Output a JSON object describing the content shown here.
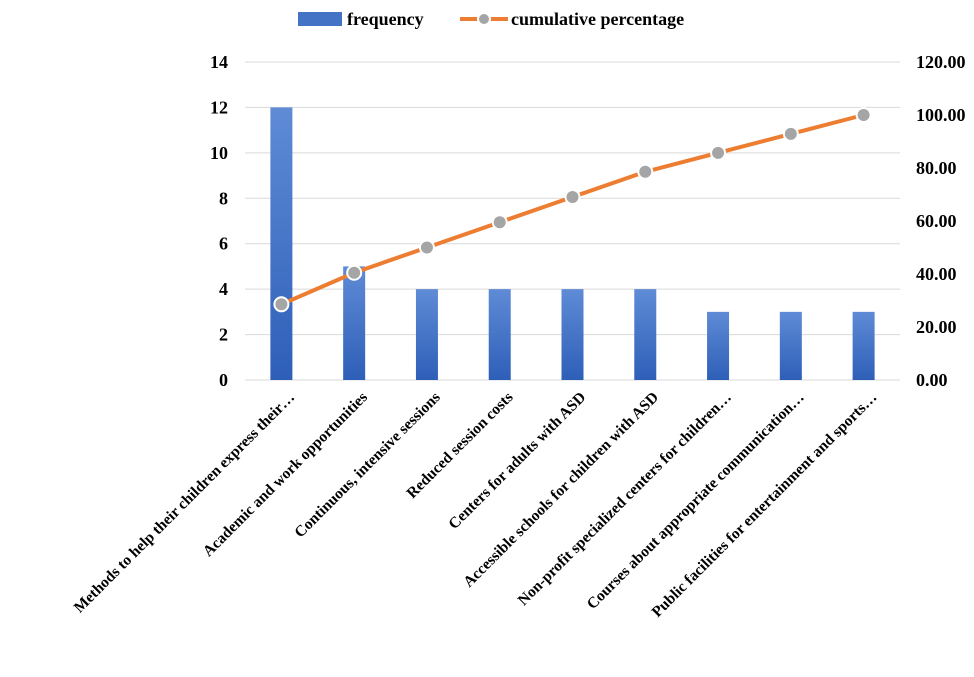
{
  "chart_data": {
    "type": "bar",
    "categories": [
      "Methods to help their children express their…",
      "Academic and work opportunities",
      "Continuous, intensive sessions",
      "Reduced session costs",
      "Centers for adults with ASD",
      "Accessible schools for children with ASD",
      "Non-profit specialized centers for children…",
      "Courses about appropriate communication…",
      "Public facilities for entertainment and sports…"
    ],
    "series": [
      {
        "name": "frequency",
        "type": "bar",
        "axis": "left",
        "values": [
          12,
          5,
          4,
          4,
          4,
          4,
          3,
          3,
          3
        ],
        "color": "#4472C4"
      },
      {
        "name": "cumulative percentage",
        "type": "line",
        "axis": "right",
        "values": [
          28.57,
          40.48,
          50.0,
          59.52,
          69.05,
          78.57,
          85.71,
          92.86,
          100.0
        ],
        "color": "#ED7D31",
        "marker_color": "#A5A5A5"
      }
    ],
    "y_left": {
      "ylim": [
        0,
        14
      ],
      "ticks": [
        "0",
        "2",
        "4",
        "6",
        "8",
        "10",
        "12",
        "14"
      ]
    },
    "y_right": {
      "ylim": [
        0,
        120
      ],
      "ticks": [
        "0.00",
        "20.00",
        "40.00",
        "60.00",
        "80.00",
        "100.00",
        "120.00"
      ]
    },
    "grid": true,
    "legend": "top"
  }
}
